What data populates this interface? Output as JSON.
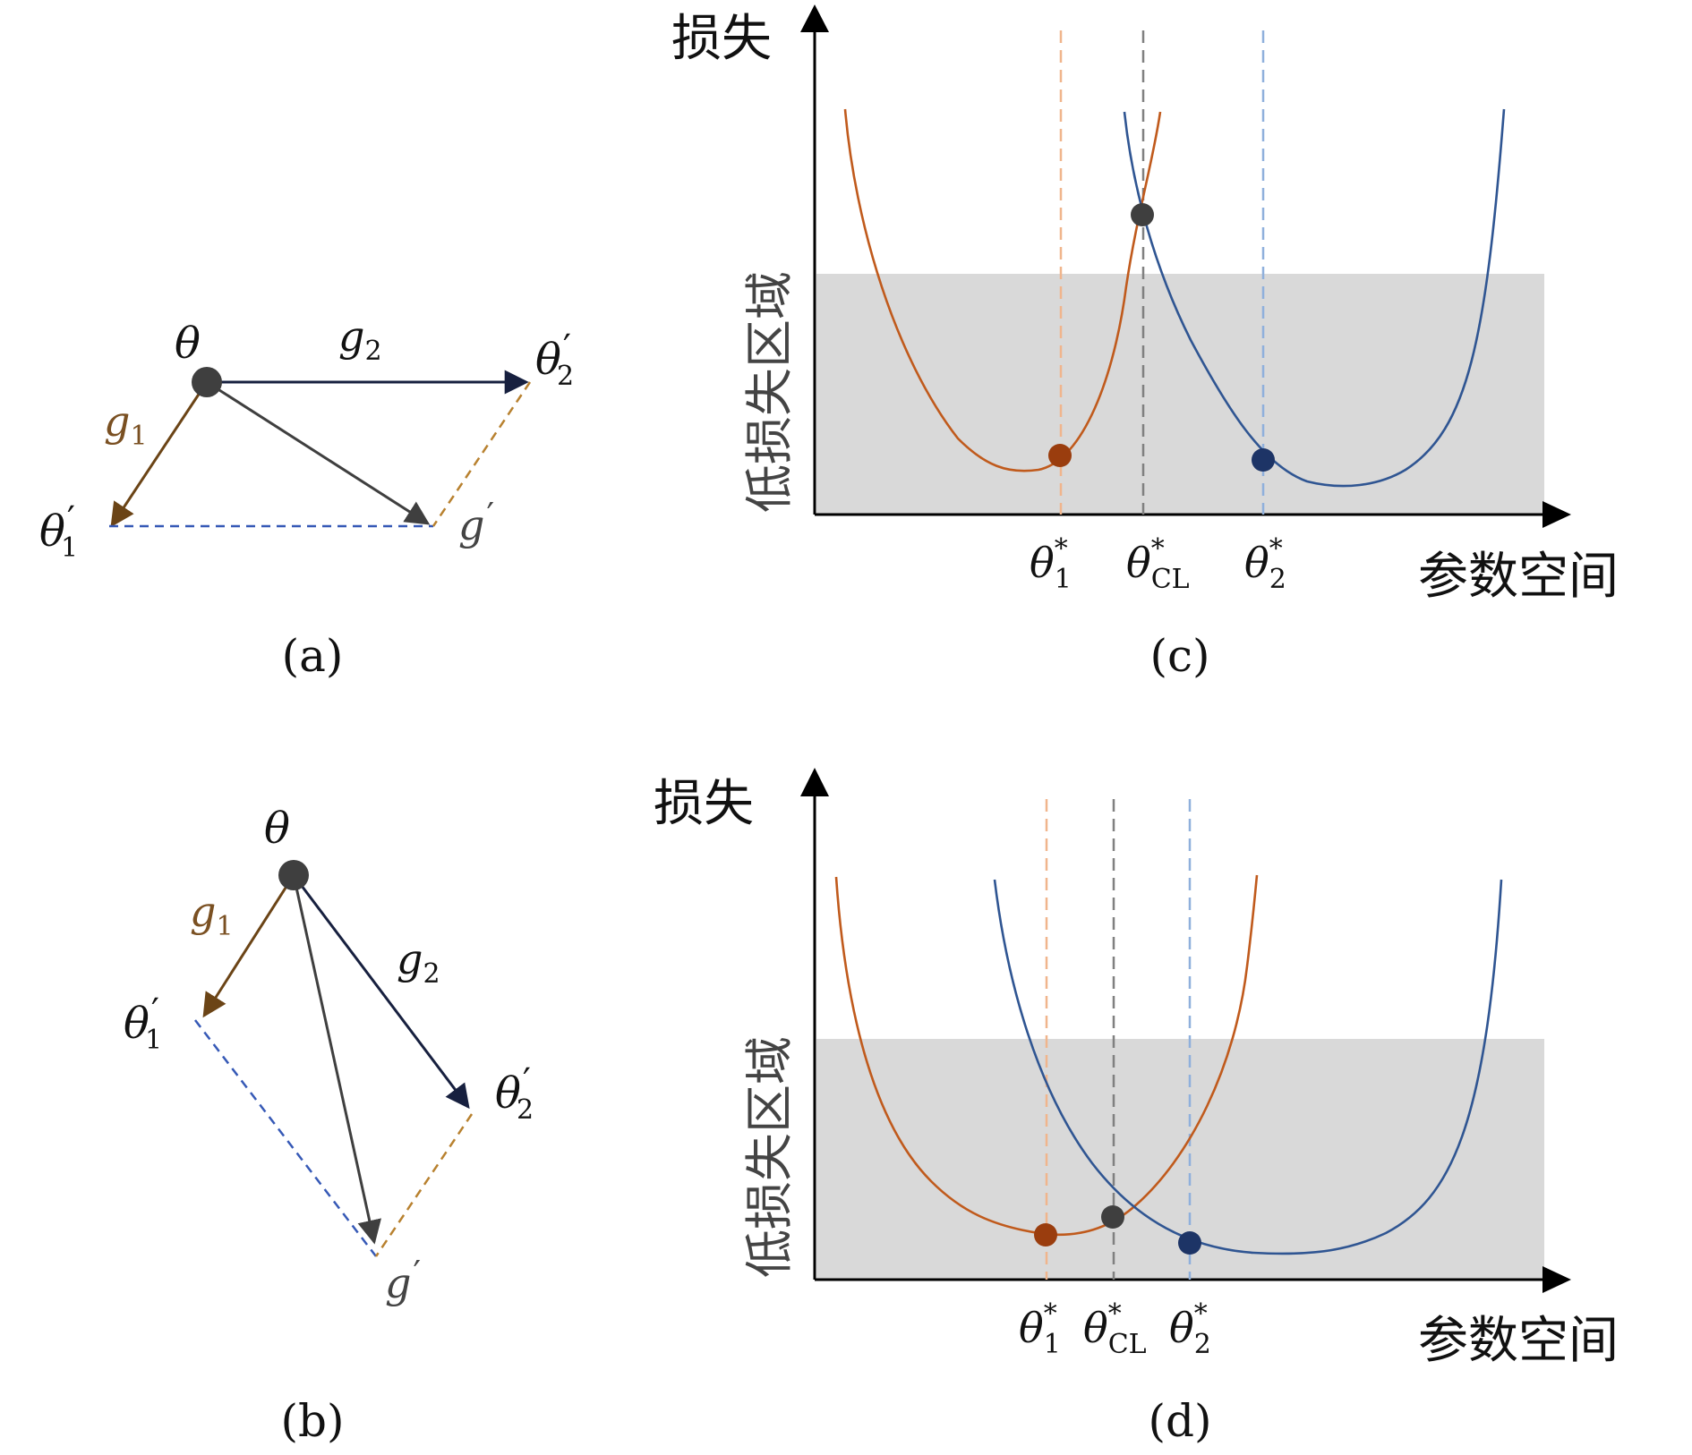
{
  "colors": {
    "task1": "#c05a1c",
    "task1_light": "#f0b58c",
    "task1_arrow": "#6b4416",
    "task1_dash": "#b8812f",
    "task2": "#2f5592",
    "task2_light": "#8fb0dc",
    "task2_arrow": "#17203f",
    "task2_dash": "#3659b6",
    "combined": "#3f3f3f",
    "combined_dash": "#808080",
    "region": "#d9d9d9",
    "marker_task1": "#9a3d0e",
    "marker_task2": "#1d3466"
  },
  "panel_a": {
    "label": "(a)",
    "nodes": {
      "theta": {
        "base": "θ"
      },
      "theta1p": {
        "base": "θ",
        "sub": "1",
        "prime": "′"
      },
      "theta2p": {
        "base": "θ",
        "sub": "2",
        "prime": "′"
      },
      "gp": {
        "base": "g",
        "prime": "′"
      }
    },
    "vectors": {
      "g1": {
        "base": "g",
        "sub": "1"
      },
      "g2": {
        "base": "g",
        "sub": "2"
      }
    }
  },
  "panel_b": {
    "label": "(b)",
    "nodes": {
      "theta": {
        "base": "θ"
      },
      "theta1p": {
        "base": "θ",
        "sub": "1",
        "prime": "′"
      },
      "theta2p": {
        "base": "θ",
        "sub": "2",
        "prime": "′"
      },
      "gp": {
        "base": "g",
        "prime": "′"
      }
    },
    "vectors": {
      "g1": {
        "base": "g",
        "sub": "1"
      },
      "g2": {
        "base": "g",
        "sub": "2"
      }
    }
  },
  "panel_c": {
    "label": "(c)",
    "y_axis_label": "损失",
    "x_axis_label": "参数空间",
    "region_label": "低损失区域",
    "ticks": {
      "t1": {
        "base": "θ",
        "sup": "*",
        "sub": "1"
      },
      "tcl": {
        "base": "θ",
        "sup": "*",
        "sub": "CL"
      },
      "t2": {
        "base": "θ",
        "sup": "*",
        "sub": "2"
      }
    }
  },
  "panel_d": {
    "label": "(d)",
    "y_axis_label": "损失",
    "x_axis_label": "参数空间",
    "region_label": "低损失区域",
    "ticks": {
      "t1": {
        "base": "θ",
        "sup": "*",
        "sub": "1"
      },
      "tcl": {
        "base": "θ",
        "sup": "*",
        "sub": "CL"
      },
      "t2": {
        "base": "θ",
        "sup": "*",
        "sub": "2"
      }
    }
  }
}
